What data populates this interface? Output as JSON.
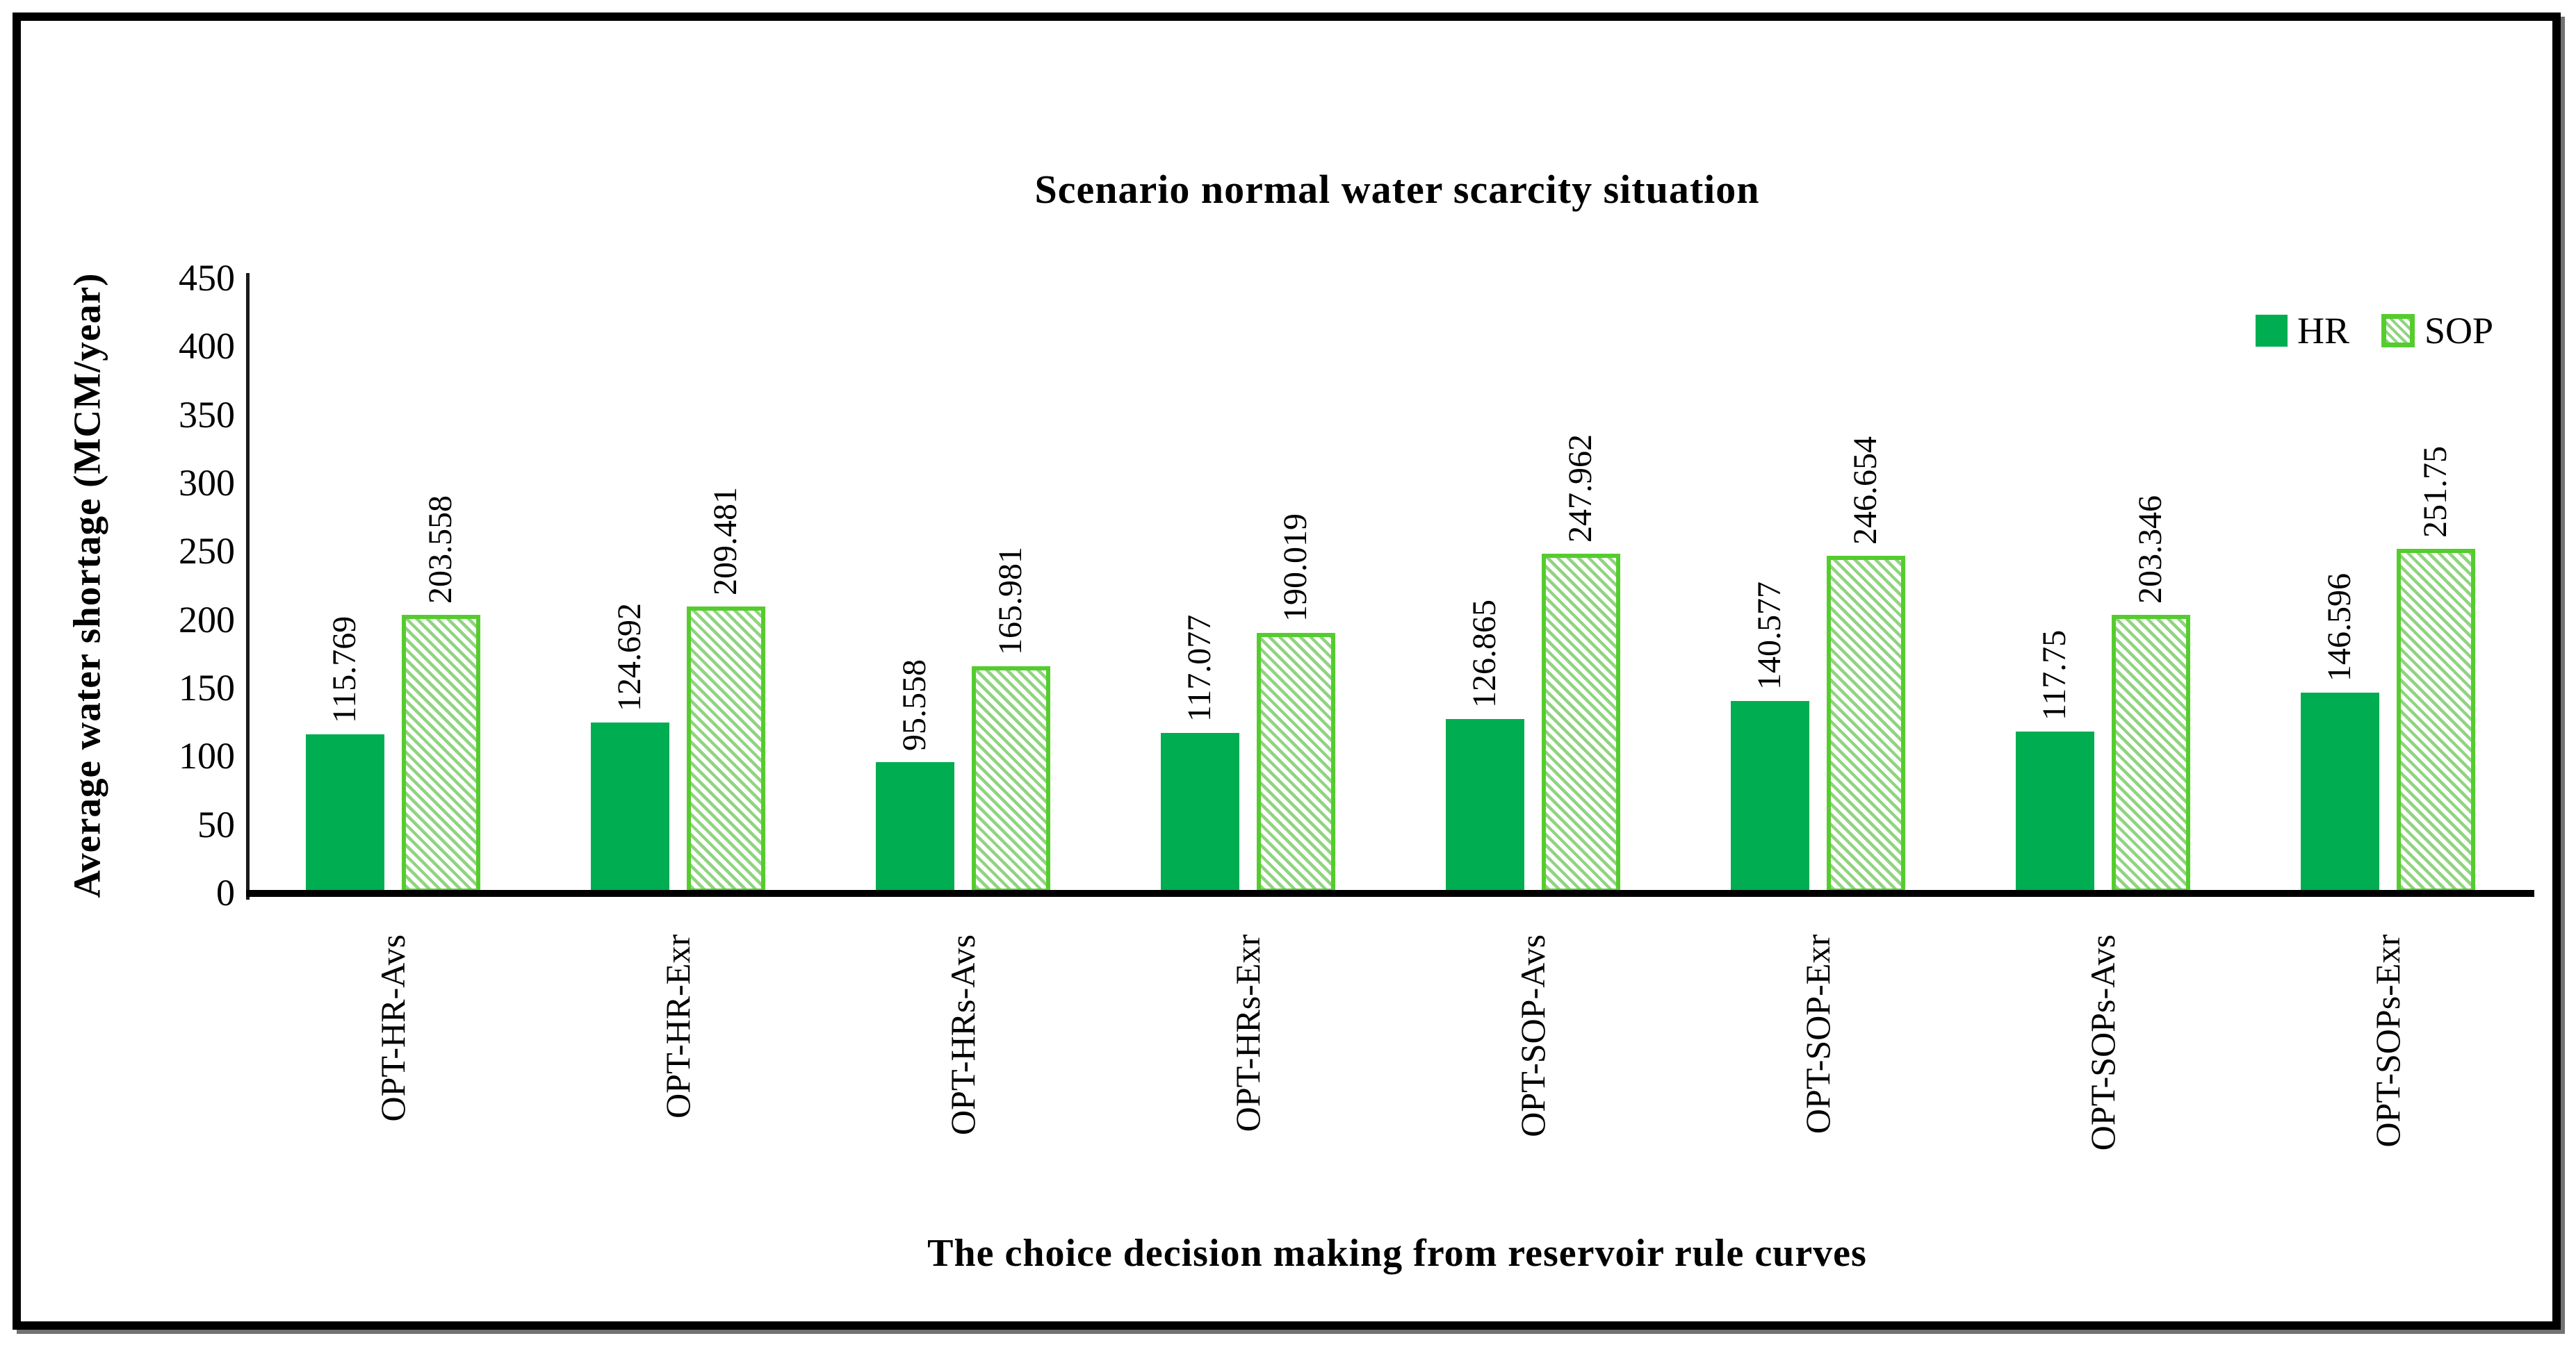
{
  "figure": {
    "background": "#ffffff",
    "frame_color": "#000000"
  },
  "legend": {
    "position": "top-right",
    "items": [
      {
        "label": "HR",
        "swatch": "solid-green"
      },
      {
        "label": "SOP",
        "swatch": "green-diagonal-hatch"
      }
    ]
  },
  "colors": {
    "hr_fill": "#00AD50",
    "sop_hatch_stripe": "#8fd47f",
    "sop_border": "#55cc2e",
    "axis": "#000000",
    "text": "#000000"
  },
  "chart_data": {
    "type": "bar",
    "title": "Scenario normal water scarcity situation",
    "xlabel": "The choice decision making from reservoir rule curves",
    "ylabel": "Average water shortage  (MCM/year)",
    "categories": [
      "OPT-HR-Avs",
      "OPT-HR-Exr",
      "OPT-HRs-Avs",
      "OPT-HRs-Exr",
      "OPT-SOP-Avs",
      "OPT-SOP-Exr",
      "OPT-SOPs-Avs",
      "OPT-SOPs-Exr"
    ],
    "series": [
      {
        "name": "HR",
        "style": "solid",
        "values": [
          115.769,
          124.692,
          95.558,
          117.077,
          126.865,
          140.577,
          117.75,
          146.596
        ],
        "labels": [
          "115.769",
          "124.692",
          "95.558",
          "117.077",
          "126.865",
          "140.577",
          "117.75",
          "146.596"
        ]
      },
      {
        "name": "SOP",
        "style": "hatch",
        "values": [
          203.558,
          209.481,
          165.981,
          190.019,
          247.962,
          246.654,
          203.346,
          251.75
        ],
        "labels": [
          "203.558",
          "209.481",
          "165.981",
          "190.019",
          "247.962",
          "246.654",
          "203.346",
          "251.75"
        ]
      }
    ],
    "ylim": [
      0,
      450
    ],
    "ytick_step": 50,
    "yticks": [
      0,
      50,
      100,
      150,
      200,
      250,
      300,
      350,
      400,
      450
    ],
    "grid": false,
    "legend_position": "top-right",
    "bar_value_labels_rotated": true,
    "category_labels_rotated": true
  }
}
